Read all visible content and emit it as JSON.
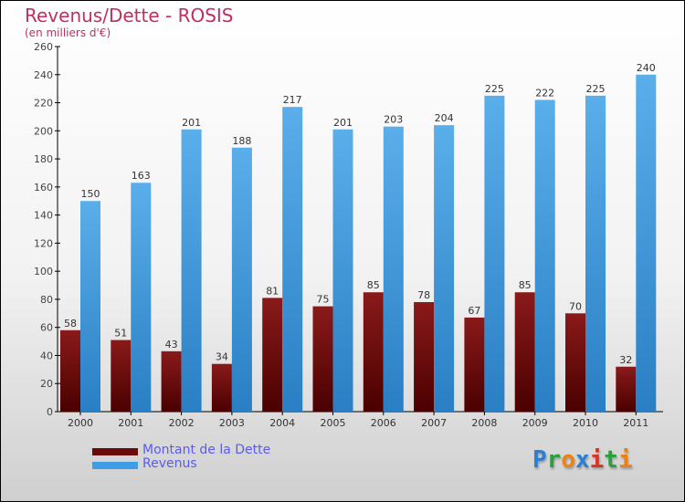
{
  "chart_data": {
    "type": "bar",
    "title": "Revenus/Dette - ROSIS",
    "subtitle": "(en milliers d'€)",
    "categories": [
      "2000",
      "2001",
      "2002",
      "2003",
      "2004",
      "2005",
      "2006",
      "2007",
      "2008",
      "2009",
      "2010",
      "2011"
    ],
    "series": [
      {
        "name": "Montant de la Dette",
        "color": "#6b0a0a",
        "values": [
          58,
          51,
          43,
          34,
          81,
          75,
          85,
          78,
          67,
          85,
          70,
          32
        ]
      },
      {
        "name": "Revenus",
        "color": "#3d9ee6",
        "values": [
          150,
          163,
          201,
          188,
          217,
          201,
          203,
          204,
          225,
          222,
          225,
          240
        ]
      }
    ],
    "ylim": [
      0,
      260
    ],
    "yticks": [
      0,
      20,
      40,
      60,
      80,
      100,
      120,
      140,
      160,
      180,
      200,
      220,
      240,
      260
    ],
    "grid": false,
    "legend": "bottom-left"
  },
  "logo": {
    "text": "Proxiti",
    "letters": [
      {
        "c": "P",
        "color": "#2a7fd4"
      },
      {
        "c": "r",
        "color": "#2aa03a"
      },
      {
        "c": "o",
        "color": "#f08010"
      },
      {
        "c": "x",
        "color": "#2a7fd4"
      },
      {
        "c": "i",
        "color": "#e03020"
      },
      {
        "c": "t",
        "color": "#2aa03a"
      },
      {
        "c": "i",
        "color": "#f08010"
      }
    ]
  }
}
